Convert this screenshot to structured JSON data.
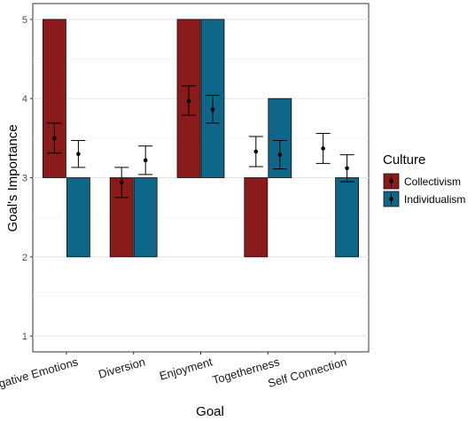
{
  "chart_data": {
    "type": "bar",
    "xlabel": "Goal",
    "ylabel": "Goal's Importance",
    "ylim": [
      0.8,
      5.2
    ],
    "yticks": [
      1,
      2,
      3,
      4,
      5
    ],
    "bar_base": 3,
    "grid": true,
    "legend_position": "right",
    "legend_title": "Culture",
    "categories": [
      "Venting Negative Emotions",
      "Diversion",
      "Enjoyment",
      "Togetherness",
      "Self Connection"
    ],
    "series": [
      {
        "name": "Collectivism",
        "color": "#8B1A1A",
        "bar_values": [
          5,
          2,
          5,
          2,
          3
        ],
        "means": [
          3.5,
          2.94,
          3.97,
          3.33,
          3.37
        ],
        "error_lower": [
          3.31,
          2.75,
          3.79,
          3.14,
          3.18
        ],
        "error_upper": [
          3.69,
          3.13,
          4.16,
          3.52,
          3.56
        ]
      },
      {
        "name": "Individualism",
        "color": "#0E6688",
        "bar_values": [
          2,
          2,
          5,
          4,
          2
        ],
        "means": [
          3.3,
          3.22,
          3.86,
          3.29,
          3.12
        ],
        "error_lower": [
          3.13,
          3.04,
          3.69,
          3.11,
          2.95
        ],
        "error_upper": [
          3.47,
          3.4,
          4.04,
          3.47,
          3.29
        ]
      }
    ]
  }
}
